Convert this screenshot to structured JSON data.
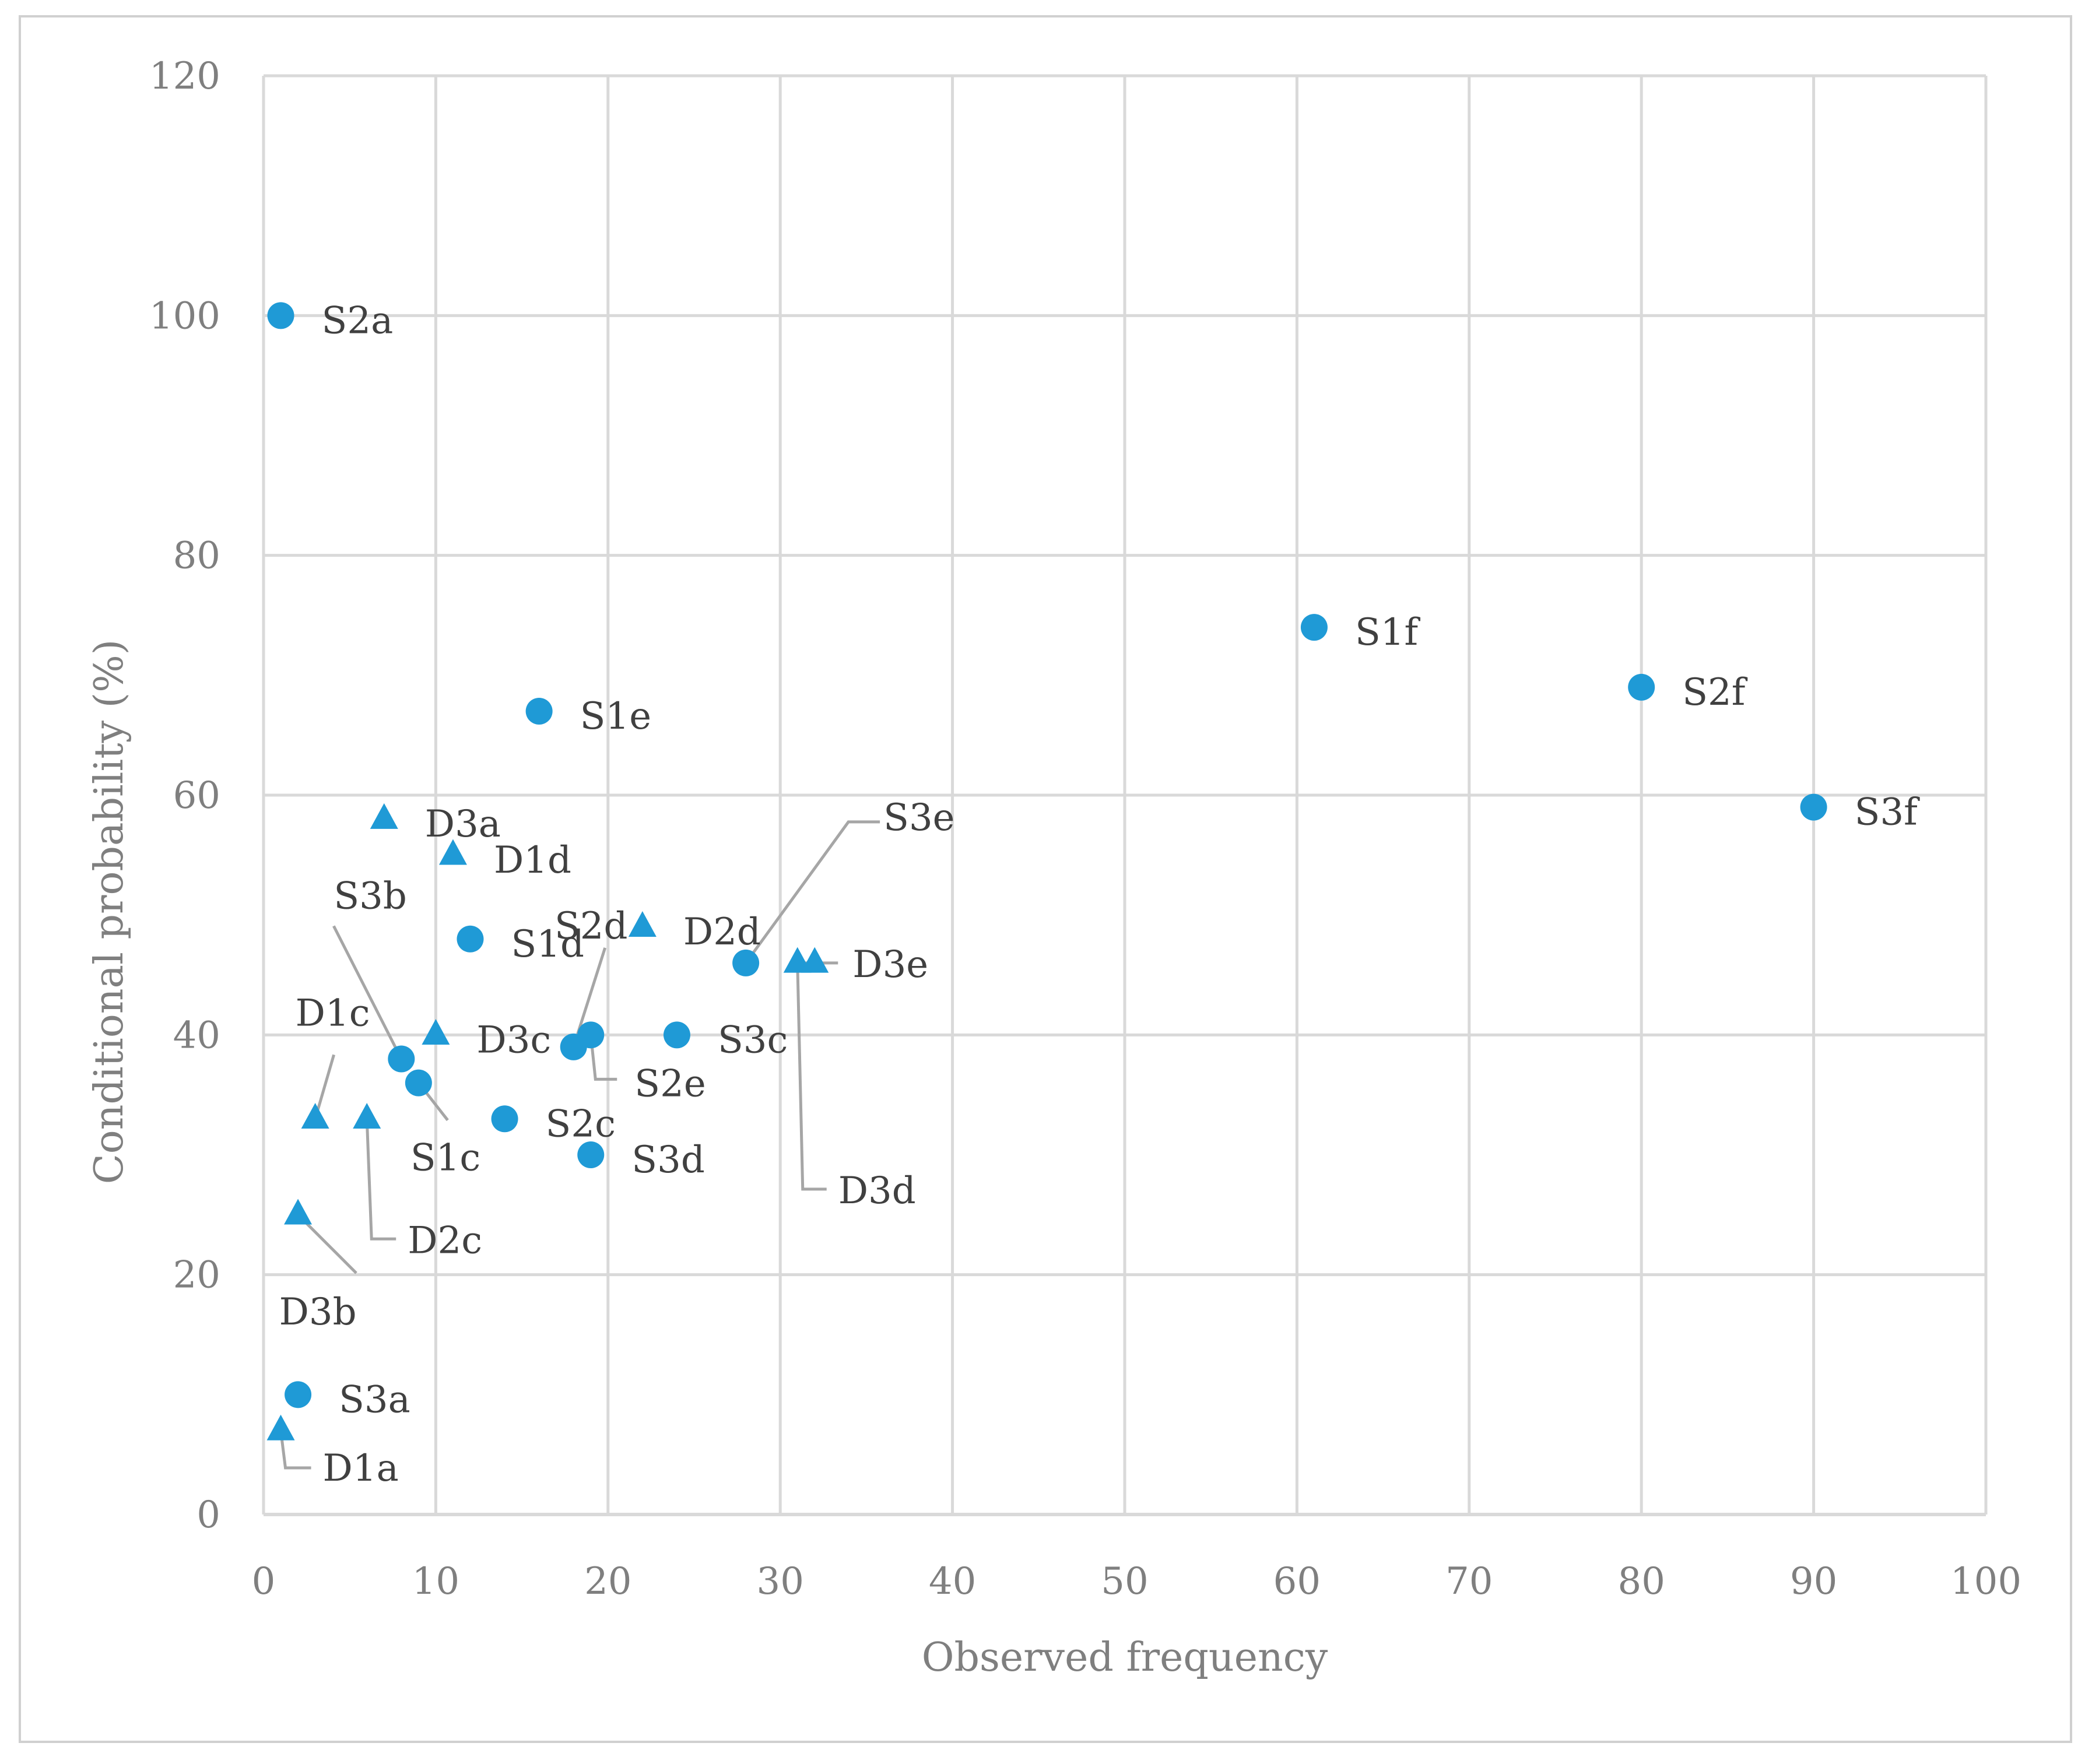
{
  "chart_data": {
    "type": "scatter",
    "title": "",
    "xlabel": "Observed frequency",
    "ylabel": "Conditional probability (%)",
    "xlim": [
      0,
      100
    ],
    "ylim": [
      0,
      120
    ],
    "x_ticks": [
      "0",
      "10",
      "20",
      "30",
      "40",
      "50",
      "60",
      "70",
      "80",
      "90",
      "100"
    ],
    "y_ticks": [
      "0",
      "20",
      "40",
      "60",
      "80",
      "100",
      "120"
    ],
    "grid": true,
    "legend": "none",
    "colors": {
      "marker": "#1f9ad6",
      "grid": "#d9d9d9",
      "text": "#7f7f7f",
      "label": "#404040",
      "leader": "#a6a6a6",
      "frame": "#d0d0d0"
    },
    "series": [
      {
        "marker": "circle",
        "points": [
          {
            "label": "S2a",
            "x": 1,
            "y": 100
          },
          {
            "label": "S1f",
            "x": 61,
            "y": 74
          },
          {
            "label": "S2f",
            "x": 80,
            "y": 69
          },
          {
            "label": "S3f",
            "x": 90,
            "y": 59
          },
          {
            "label": "S1e",
            "x": 16,
            "y": 67
          },
          {
            "label": "S1d",
            "x": 12,
            "y": 48
          },
          {
            "label": "S3e",
            "x": 28,
            "y": 46
          },
          {
            "label": "S3c",
            "x": 24,
            "y": 40
          },
          {
            "label": "S2d",
            "x": 18,
            "y": 39
          },
          {
            "label": "S2e",
            "x": 19,
            "y": 40
          },
          {
            "label": "S3b",
            "x": 8,
            "y": 38
          },
          {
            "label": "S1c",
            "x": 9,
            "y": 36
          },
          {
            "label": "S2c",
            "x": 14,
            "y": 33
          },
          {
            "label": "S3d",
            "x": 19,
            "y": 30
          },
          {
            "label": "S3a",
            "x": 2,
            "y": 10
          }
        ]
      },
      {
        "marker": "triangle",
        "points": [
          {
            "label": "D3a",
            "x": 7,
            "y": 58
          },
          {
            "label": "D1d",
            "x": 11,
            "y": 55
          },
          {
            "label": "D2d",
            "x": 22,
            "y": 49
          },
          {
            "label": "D3d",
            "x": 31,
            "y": 46
          },
          {
            "label": "D3e",
            "x": 32,
            "y": 46
          },
          {
            "label": "D3c",
            "x": 10,
            "y": 40
          },
          {
            "label": "D1c",
            "x": 3,
            "y": 33
          },
          {
            "label": "D2c",
            "x": 6,
            "y": 33
          },
          {
            "label": "D3b",
            "x": 2,
            "y": 25
          },
          {
            "label": "D1a",
            "x": 1,
            "y": 7
          }
        ]
      }
    ]
  }
}
